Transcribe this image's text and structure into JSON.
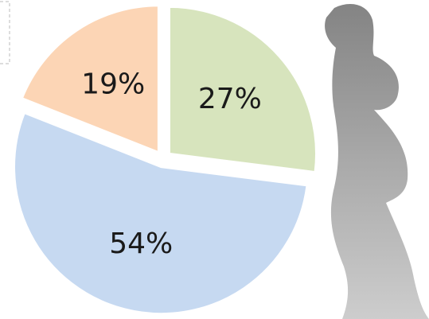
{
  "chart_data": {
    "type": "pie",
    "values": [
      27,
      54,
      19
    ],
    "value_labels": [
      "27%",
      "54%",
      "19%"
    ],
    "colors": [
      "#d7e4bd",
      "#c6d9f1",
      "#fcd5b5"
    ]
  }
}
